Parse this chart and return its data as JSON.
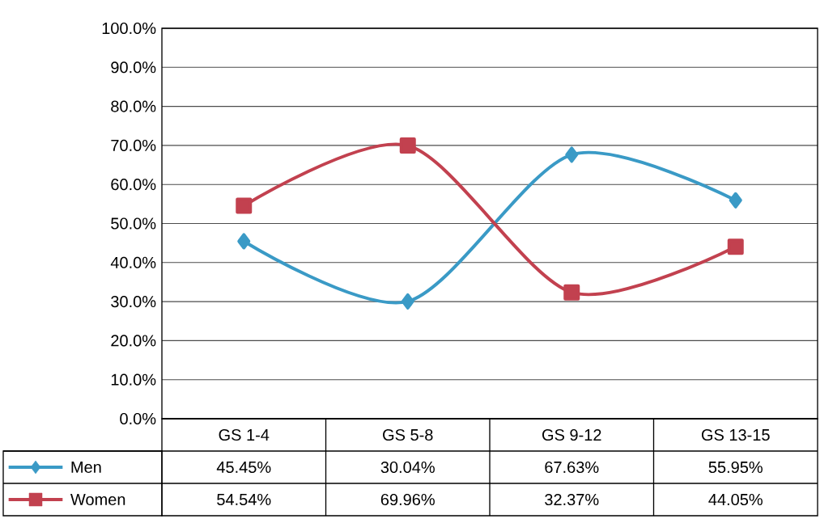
{
  "chart_data": {
    "type": "line",
    "categories": [
      "GS 1-4",
      "GS 5-8",
      "GS 9-12",
      "GS 13-15"
    ],
    "series": [
      {
        "name": "Men",
        "color": "#3a9ac6",
        "marker": "diamond",
        "values": [
          45.45,
          30.04,
          67.63,
          55.95
        ],
        "value_labels": [
          "45.45%",
          "30.04%",
          "67.63%",
          "55.95%"
        ]
      },
      {
        "name": "Women",
        "color": "#c2414f",
        "marker": "square",
        "values": [
          54.54,
          69.96,
          32.37,
          44.05
        ],
        "value_labels": [
          "54.54%",
          "69.96%",
          "32.37%",
          "44.05%"
        ]
      }
    ],
    "ylim": [
      0,
      100
    ],
    "yticks": [
      {
        "value": 0,
        "label": "0.0%"
      },
      {
        "value": 10,
        "label": "10.0%"
      },
      {
        "value": 20,
        "label": "20.0%"
      },
      {
        "value": 30,
        "label": "30.0%"
      },
      {
        "value": 40,
        "label": "40.0%"
      },
      {
        "value": 50,
        "label": "50.0%"
      },
      {
        "value": 60,
        "label": "60.0%"
      },
      {
        "value": 70,
        "label": "70.0%"
      },
      {
        "value": 80,
        "label": "80.0%"
      },
      {
        "value": 90,
        "label": "90.0%"
      },
      {
        "value": 100,
        "label": "100.0%"
      }
    ],
    "grid": "y",
    "legend": "bottom left",
    "line_style": "solid"
  }
}
